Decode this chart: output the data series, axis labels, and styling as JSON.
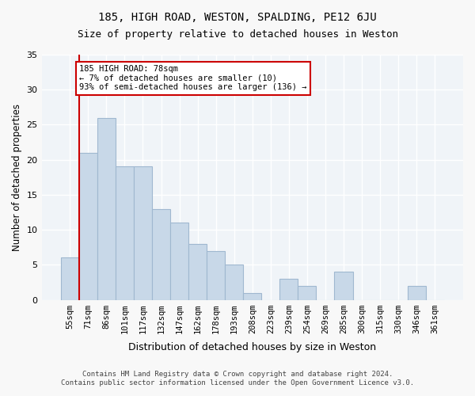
{
  "title": "185, HIGH ROAD, WESTON, SPALDING, PE12 6JU",
  "subtitle": "Size of property relative to detached houses in Weston",
  "xlabel": "Distribution of detached houses by size in Weston",
  "ylabel": "Number of detached properties",
  "bar_color": "#c8d8e8",
  "bar_edge_color": "#a0b8d0",
  "background_color": "#f0f4f8",
  "grid_color": "#ffffff",
  "categories": [
    "55sqm",
    "71sqm",
    "86sqm",
    "101sqm",
    "117sqm",
    "132sqm",
    "147sqm",
    "162sqm",
    "178sqm",
    "193sqm",
    "208sqm",
    "223sqm",
    "239sqm",
    "254sqm",
    "269sqm",
    "285sqm",
    "300sqm",
    "315sqm",
    "330sqm",
    "346sqm",
    "361sqm"
  ],
  "values": [
    6,
    21,
    26,
    19,
    19,
    13,
    11,
    8,
    7,
    5,
    1,
    0,
    3,
    2,
    0,
    4,
    0,
    0,
    0,
    2,
    0
  ],
  "ylim": [
    0,
    35
  ],
  "yticks": [
    0,
    5,
    10,
    15,
    20,
    25,
    30,
    35
  ],
  "property_line_x": 1,
  "property_line_color": "#cc0000",
  "annotation_text": "185 HIGH ROAD: 78sqm\n← 7% of detached houses are smaller (10)\n93% of semi-detached houses are larger (136) →",
  "annotation_box_color": "#ffffff",
  "annotation_box_edge_color": "#cc0000",
  "footer_line1": "Contains HM Land Registry data © Crown copyright and database right 2024.",
  "footer_line2": "Contains public sector information licensed under the Open Government Licence v3.0."
}
